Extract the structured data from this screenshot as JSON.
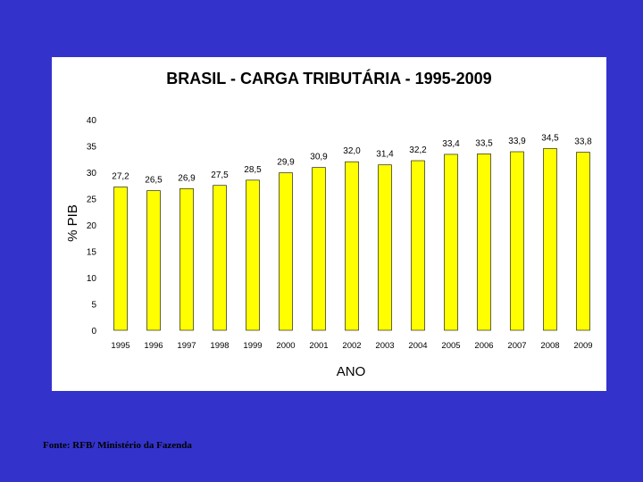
{
  "colors": {
    "background": "#3333cc",
    "panel": "#ffffff",
    "bar_fill": "#ffff00",
    "bar_stroke": "#000000"
  },
  "source": "Fonte: RFB/ Ministério da Fazenda",
  "chart_data": {
    "type": "bar",
    "title": "BRASIL - CARGA TRIBUTÁRIA - 1995-2009",
    "xlabel": "ANO",
    "ylabel": "% PIB",
    "ylim": [
      0,
      40
    ],
    "yticks": [
      0,
      5,
      10,
      15,
      20,
      25,
      30,
      35,
      40
    ],
    "categories": [
      "1995",
      "1996",
      "1997",
      "1998",
      "1999",
      "2000",
      "2001",
      "2002",
      "2003",
      "2004",
      "2005",
      "2006",
      "2007",
      "2008",
      "2009"
    ],
    "values": [
      27.2,
      26.5,
      26.9,
      27.5,
      28.5,
      29.9,
      30.9,
      32.0,
      31.4,
      32.2,
      33.4,
      33.5,
      33.9,
      34.5,
      33.8
    ],
    "labels": [
      "27,2",
      "26,5",
      "26,9",
      "27,5",
      "28,5",
      "29,9",
      "30,9",
      "32,0",
      "31,4",
      "32,2",
      "33,4",
      "33,5",
      "33,9",
      "34,5",
      "33,8"
    ],
    "grid": false,
    "legend": "none"
  }
}
